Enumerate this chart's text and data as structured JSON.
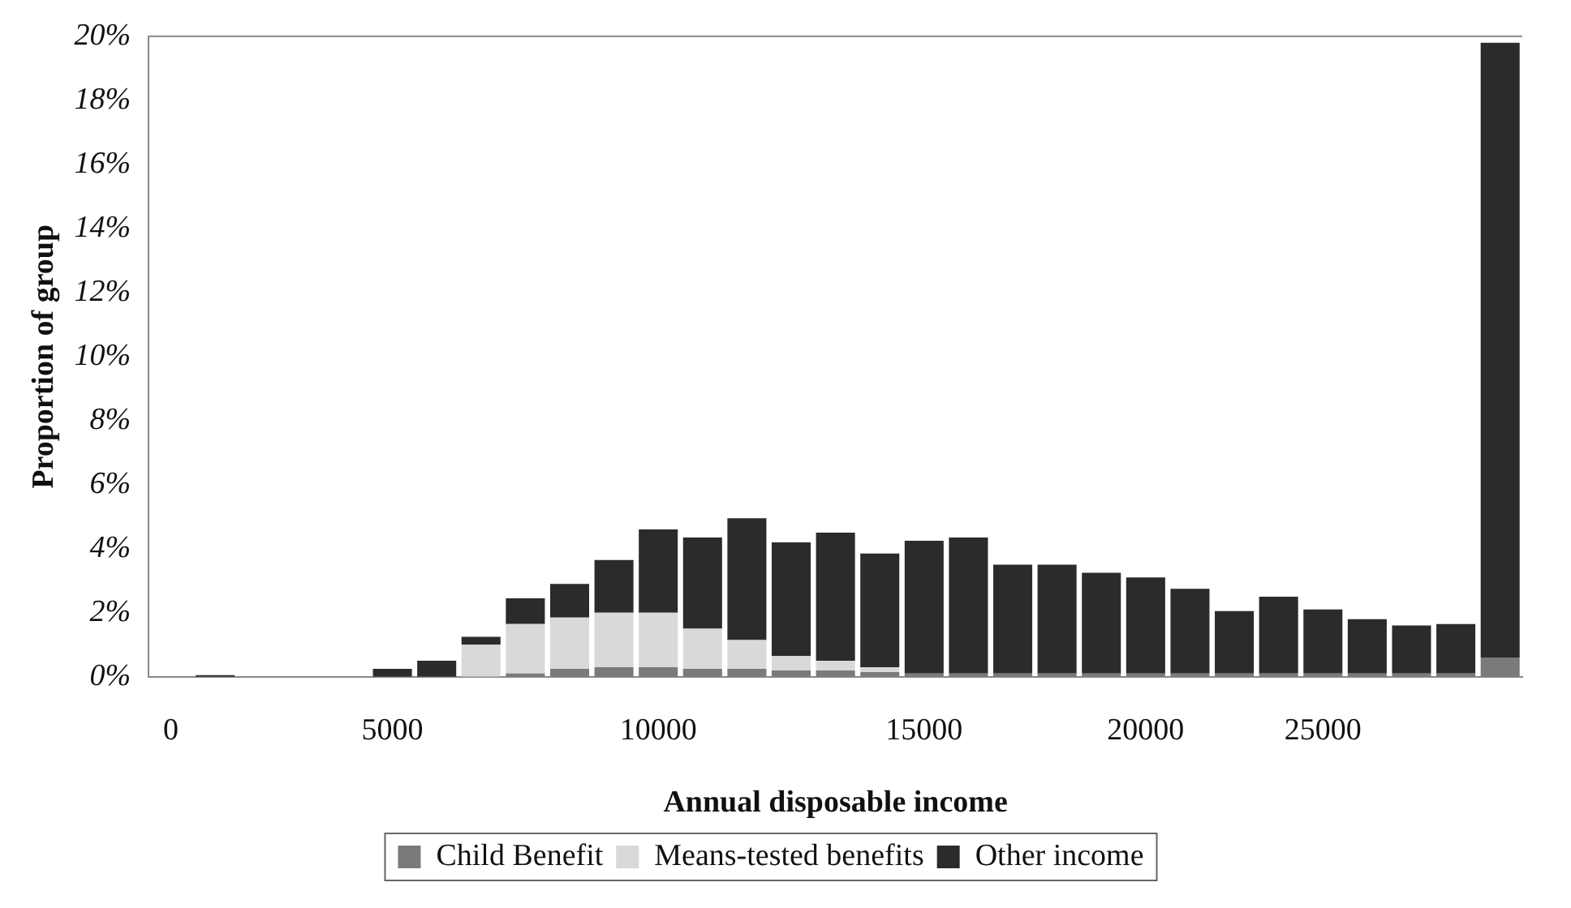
{
  "chart_data": {
    "type": "bar",
    "stacked": true,
    "xlabel": "Annual disposable income",
    "ylabel": "Proportion of group",
    "categories": [
      "0",
      null,
      null,
      null,
      null,
      "5000",
      null,
      null,
      null,
      null,
      null,
      "10000",
      null,
      null,
      null,
      null,
      null,
      "15000",
      null,
      null,
      null,
      null,
      "20000",
      null,
      null,
      null,
      "25000",
      null,
      null,
      null,
      null
    ],
    "series": [
      {
        "name": "Child Benefit",
        "color": "#7a7a7a",
        "values": [
          0,
          0,
          0,
          0,
          0,
          0,
          0,
          null,
          0.1,
          0.25,
          0.3,
          0.3,
          0.25,
          0.25,
          0.2,
          0.2,
          0.15,
          0.1,
          0.1,
          0.1,
          0.1,
          0.1,
          0.1,
          0.1,
          0.1,
          0.1,
          0.1,
          0.1,
          0.1,
          0.1,
          0.6
        ]
      },
      {
        "name": "Means-tested benefits",
        "color": "#d9d9d9",
        "values": [
          0,
          0,
          0,
          0,
          0,
          0,
          0,
          1.0,
          1.55,
          1.6,
          1.7,
          1.7,
          1.25,
          0.9,
          0.45,
          0.3,
          0.15,
          null,
          null,
          0,
          0,
          0,
          0,
          0,
          0,
          0,
          0,
          0,
          0,
          0,
          0
        ]
      },
      {
        "name": "Other income",
        "color": "#2b2b2b",
        "values": [
          0,
          0.05,
          0,
          null,
          0,
          0.25,
          0.5,
          0.25,
          0.8,
          1.05,
          1.65,
          2.6,
          2.85,
          3.8,
          3.55,
          4.0,
          3.55,
          4.15,
          4.25,
          3.4,
          3.4,
          3.15,
          3.0,
          2.65,
          1.95,
          2.4,
          2.0,
          1.7,
          1.5,
          1.55,
          19.2
        ]
      }
    ],
    "ylim": [
      0,
      20
    ],
    "yticks": [
      {
        "value": 0,
        "label": "0%"
      },
      {
        "value": 2,
        "label": "2%"
      },
      {
        "value": 4,
        "label": "4%"
      },
      {
        "value": 6,
        "label": "6%"
      },
      {
        "value": 8,
        "label": "8%"
      },
      {
        "value": 10,
        "label": "10%"
      },
      {
        "value": 12,
        "label": "12%"
      },
      {
        "value": 14,
        "label": "14%"
      },
      {
        "value": 16,
        "label": "16%"
      },
      {
        "value": 18,
        "label": "18%"
      },
      {
        "value": 20,
        "label": "20%"
      }
    ],
    "grid": false,
    "legend": "bottom"
  }
}
